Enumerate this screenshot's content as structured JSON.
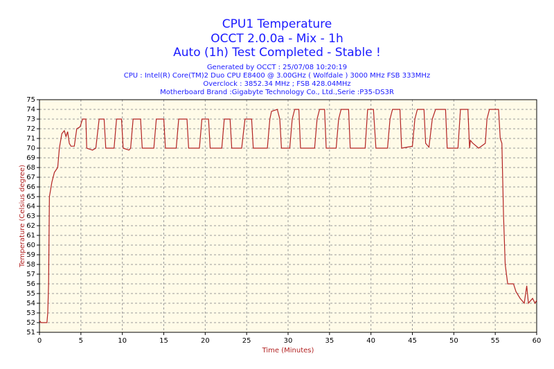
{
  "chart_data": {
    "type": "line",
    "title": "CPU1 Temperature",
    "subtitle_lines": [
      "OCCT 2.0.0a - Mix - 1h",
      "Auto (1h) Test Completed - Stable !"
    ],
    "info_lines": [
      "Generated by OCCT : 25/07/08 10:20:19",
      "CPU : Intel(R) Core(TM)2 Duo CPU E8400 @ 3.00GHz ( Wolfdale ) 3000 MHz FSB 333MHz",
      "Overclock : 3852.34 MHz ; FSB 428.04MHz",
      "Motherboard Brand :Gigabyte Technology Co., Ltd.,Serie :P35-DS3R"
    ],
    "xlabel": "Time (Minutes)",
    "ylabel": "Temperature (Celsius degree)",
    "xlim": [
      0,
      60
    ],
    "ylim": [
      51,
      75
    ],
    "xticks": [
      0,
      5,
      10,
      15,
      20,
      25,
      30,
      35,
      40,
      45,
      50,
      55,
      60
    ],
    "yticks": [
      51,
      52,
      53,
      54,
      55,
      56,
      57,
      58,
      59,
      60,
      61,
      62,
      63,
      64,
      65,
      66,
      67,
      68,
      69,
      70,
      71,
      72,
      73,
      74,
      75
    ],
    "grid": true,
    "x": [
      0,
      0.2,
      0.9,
      1.0,
      1.1,
      1.2,
      1.5,
      1.8,
      2.2,
      2.4,
      2.7,
      3.0,
      3.2,
      3.4,
      3.6,
      3.8,
      4.2,
      4.5,
      4.9,
      5.2,
      5.6,
      5.7,
      6.4,
      6.8,
      7.2,
      7.8,
      8.0,
      9.0,
      9.3,
      9.9,
      10.1,
      10.8,
      11.0,
      11.3,
      12.2,
      12.4,
      13.8,
      14.1,
      15.0,
      15.2,
      16.5,
      16.8,
      17.8,
      18.0,
      19.3,
      19.6,
      20.4,
      20.6,
      22.0,
      22.3,
      23.0,
      23.2,
      24.4,
      24.8,
      25.6,
      25.8,
      27.5,
      27.8,
      28.0,
      28.7,
      29.0,
      29.2,
      30.2,
      30.5,
      30.8,
      31.3,
      31.5,
      33.2,
      33.5,
      33.8,
      34.4,
      34.6,
      35.8,
      36.1,
      36.4,
      37.3,
      37.5,
      39.3,
      39.6,
      40.3,
      40.6,
      42.0,
      42.3,
      42.6,
      43.5,
      43.7,
      45.0,
      45.3,
      45.6,
      46.4,
      46.6,
      47.0,
      47.4,
      47.8,
      49.0,
      49.2,
      50.5,
      50.8,
      51.7,
      51.9,
      52.0,
      52.3,
      53.0,
      53.8,
      54.0,
      54.3,
      55.4,
      55.6,
      55.8,
      56.0,
      56.2,
      56.5,
      57.2,
      57.5,
      58.0,
      58.5,
      58.8,
      59.0,
      59.5,
      59.8,
      60
    ],
    "series": [
      {
        "name": "CPU1",
        "color": "#b22222",
        "values": [
          52.2,
          52,
          52,
          53,
          56,
          65,
          66.5,
          67.5,
          68,
          70,
          71.5,
          71.8,
          71.2,
          71.7,
          70.5,
          70.2,
          70.2,
          72,
          72.2,
          73,
          73,
          70,
          69.8,
          70,
          73,
          73,
          70,
          70,
          73,
          73,
          70,
          69.8,
          70,
          73,
          73,
          70,
          70,
          73,
          73,
          70,
          70,
          73,
          73,
          70,
          70,
          73,
          73,
          70,
          70,
          73,
          73,
          70,
          70,
          73,
          73,
          70,
          70,
          73,
          73.8,
          74,
          73,
          70,
          70,
          73,
          74,
          74,
          70,
          70,
          73,
          74,
          74,
          70,
          70,
          73,
          74,
          74,
          70,
          70,
          74,
          74,
          70,
          70,
          73,
          74,
          74,
          70,
          70.2,
          73,
          74,
          74,
          70.5,
          70.1,
          73,
          74,
          74,
          70,
          70,
          74,
          74,
          70,
          70.8,
          70.5,
          70,
          70.5,
          73,
          74,
          74,
          71,
          70.5,
          63,
          58,
          56,
          56,
          55.2,
          54.5,
          54,
          55.8,
          54,
          54.5,
          54,
          54.3
        ]
      }
    ]
  }
}
